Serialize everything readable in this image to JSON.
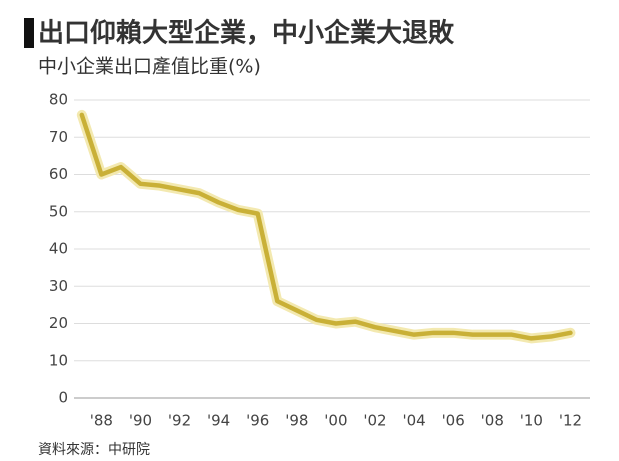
{
  "chart_data": {
    "type": "line",
    "title": "出口仰賴大型企業，中小企業大退敗",
    "subtitle": "中小企業出口產值比重(%)",
    "source": "資料來源：中研院",
    "x": [
      1987,
      1988,
      1989,
      1990,
      1991,
      1992,
      1993,
      1994,
      1995,
      1996,
      1997,
      1998,
      1999,
      2000,
      2001,
      2002,
      2003,
      2004,
      2005,
      2006,
      2007,
      2008,
      2009,
      2010,
      2011,
      2012
    ],
    "series": [
      {
        "name": "中小企業出口產值比重",
        "color": "#c9b037",
        "values": [
          76,
          60,
          62,
          57.5,
          57,
          56,
          55,
          52.5,
          50.5,
          49.5,
          26,
          23.5,
          21,
          20,
          20.5,
          19,
          18,
          17,
          17.5,
          17.5,
          17,
          17,
          17,
          16,
          16.5,
          17.5
        ]
      }
    ],
    "xlim": [
      1986.6,
      2013
    ],
    "xticks": [
      {
        "value": 1988,
        "label": "'88"
      },
      {
        "value": 1990,
        "label": "'90"
      },
      {
        "value": 1992,
        "label": "'92"
      },
      {
        "value": 1994,
        "label": "'94"
      },
      {
        "value": 1996,
        "label": "'96"
      },
      {
        "value": 1998,
        "label": "'98"
      },
      {
        "value": 2000,
        "label": "'00"
      },
      {
        "value": 2002,
        "label": "'02"
      },
      {
        "value": 2004,
        "label": "'04"
      },
      {
        "value": 2006,
        "label": "'06"
      },
      {
        "value": 2008,
        "label": "'08"
      },
      {
        "value": 2010,
        "label": "'10"
      },
      {
        "value": 2012,
        "label": "'12"
      }
    ],
    "ylim": [
      0,
      80
    ],
    "yticks": [
      0,
      10,
      20,
      30,
      40,
      50,
      60,
      70,
      80
    ],
    "grid": true
  }
}
